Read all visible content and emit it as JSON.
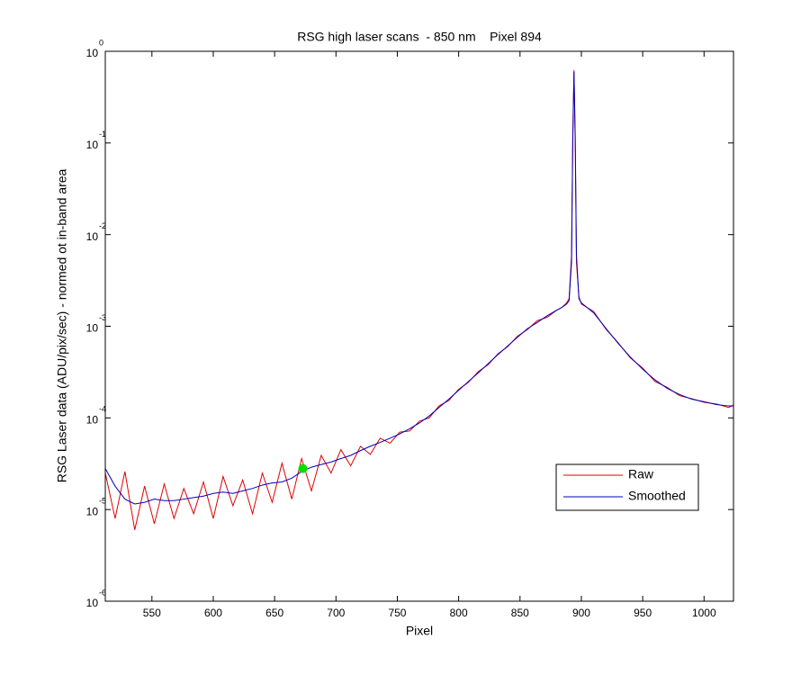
{
  "chart_data": {
    "type": "line",
    "title": "RSG high laser scans  - 850 nm    Pixel 894",
    "xlabel": "Pixel",
    "ylabel": "RSG Laser data (ADU/pix/sec) - normed ot in-band area",
    "xlim": [
      512,
      1024
    ],
    "xticks": [
      550,
      600,
      650,
      700,
      750,
      800,
      850,
      900,
      950,
      1000
    ],
    "ylim": [
      1e-06,
      1
    ],
    "yscale": "log",
    "yticks": [
      {
        "value": 1e-06,
        "label": "10",
        "exponent": "-6"
      },
      {
        "value": 1e-05,
        "label": "10",
        "exponent": "-5"
      },
      {
        "value": 0.0001,
        "label": "10",
        "exponent": "-4"
      },
      {
        "value": 0.001,
        "label": "10",
        "exponent": "-3"
      },
      {
        "value": 0.01,
        "label": "10",
        "exponent": "-2"
      },
      {
        "value": 0.1,
        "label": "10",
        "exponent": "-1"
      },
      {
        "value": 1,
        "label": "10",
        "exponent": "0"
      }
    ],
    "legend": "southeast",
    "x": [
      512,
      520,
      528,
      536,
      544,
      552,
      560,
      568,
      576,
      584,
      592,
      600,
      608,
      616,
      624,
      632,
      640,
      648,
      656,
      664,
      672,
      680,
      688,
      696,
      704,
      712,
      720,
      728,
      736,
      744,
      752,
      760,
      768,
      776,
      784,
      792,
      800,
      808,
      816,
      824,
      832,
      840,
      848,
      856,
      864,
      872,
      880,
      884,
      888,
      890,
      892,
      893,
      894,
      895,
      896,
      898,
      900,
      910,
      920,
      930,
      940,
      950,
      960,
      970,
      980,
      990,
      1000,
      1010,
      1020,
      1024
    ],
    "series": [
      {
        "name": "Raw",
        "color": "#e00000",
        "values": [
          2.5e-05,
          8e-06,
          2.6e-05,
          6e-06,
          1.8e-05,
          7e-06,
          1.9e-05,
          8e-06,
          1.7e-05,
          9e-06,
          2e-05,
          8e-06,
          2.3e-05,
          1.1e-05,
          2.1e-05,
          9e-06,
          2.5e-05,
          1.2e-05,
          3.2e-05,
          1.3e-05,
          3.6e-05,
          1.6e-05,
          3.9e-05,
          2.5e-05,
          4.5e-05,
          3e-05,
          4.9e-05,
          4e-05,
          6e-05,
          5.3e-05,
          7e-05,
          7.2e-05,
          9.2e-05,
          0.0001,
          0.000135,
          0.000155,
          0.000205,
          0.000245,
          0.00032,
          0.00038,
          0.0005,
          0.0006,
          0.00078,
          0.00092,
          0.00115,
          0.00125,
          0.0015,
          0.0016,
          0.0018,
          0.002,
          0.006,
          0.12,
          0.62,
          0.1,
          0.005,
          0.0021,
          0.00175,
          0.00145,
          0.00093,
          0.00066,
          0.00045,
          0.00035,
          0.00025,
          0.000215,
          0.000175,
          0.000162,
          0.000148,
          0.000142,
          0.00013,
          0.000138
        ]
      },
      {
        "name": "Smoothed",
        "color": "#0000c0",
        "values": [
          2.8e-05,
          1.8e-05,
          1.3e-05,
          1.15e-05,
          1.2e-05,
          1.3e-05,
          1.25e-05,
          1.25e-05,
          1.3e-05,
          1.35e-05,
          1.4e-05,
          1.5e-05,
          1.55e-05,
          1.5e-05,
          1.6e-05,
          1.7e-05,
          1.85e-05,
          1.95e-05,
          2e-05,
          2.2e-05,
          2.6e-05,
          2.9e-05,
          3.1e-05,
          3.3e-05,
          3.6e-05,
          3.9e-05,
          4.4e-05,
          4.9e-05,
          5.4e-05,
          6e-05,
          6.7e-05,
          7.6e-05,
          8.8e-05,
          0.000105,
          0.00013,
          0.00016,
          0.0002,
          0.00025,
          0.00031,
          0.00039,
          0.00049,
          0.00061,
          0.00076,
          0.00094,
          0.0011,
          0.0013,
          0.0015,
          0.0016,
          0.00175,
          0.0019,
          0.005,
          0.1,
          0.6,
          0.12,
          0.006,
          0.002,
          0.0018,
          0.0014,
          0.00095,
          0.00065,
          0.00046,
          0.00034,
          0.00026,
          0.00021,
          0.00018,
          0.00016,
          0.00015,
          0.00014,
          0.000135,
          0.000135
        ]
      }
    ],
    "marker": {
      "x": 673,
      "y": 2.8e-05,
      "color": "#00e000"
    }
  }
}
